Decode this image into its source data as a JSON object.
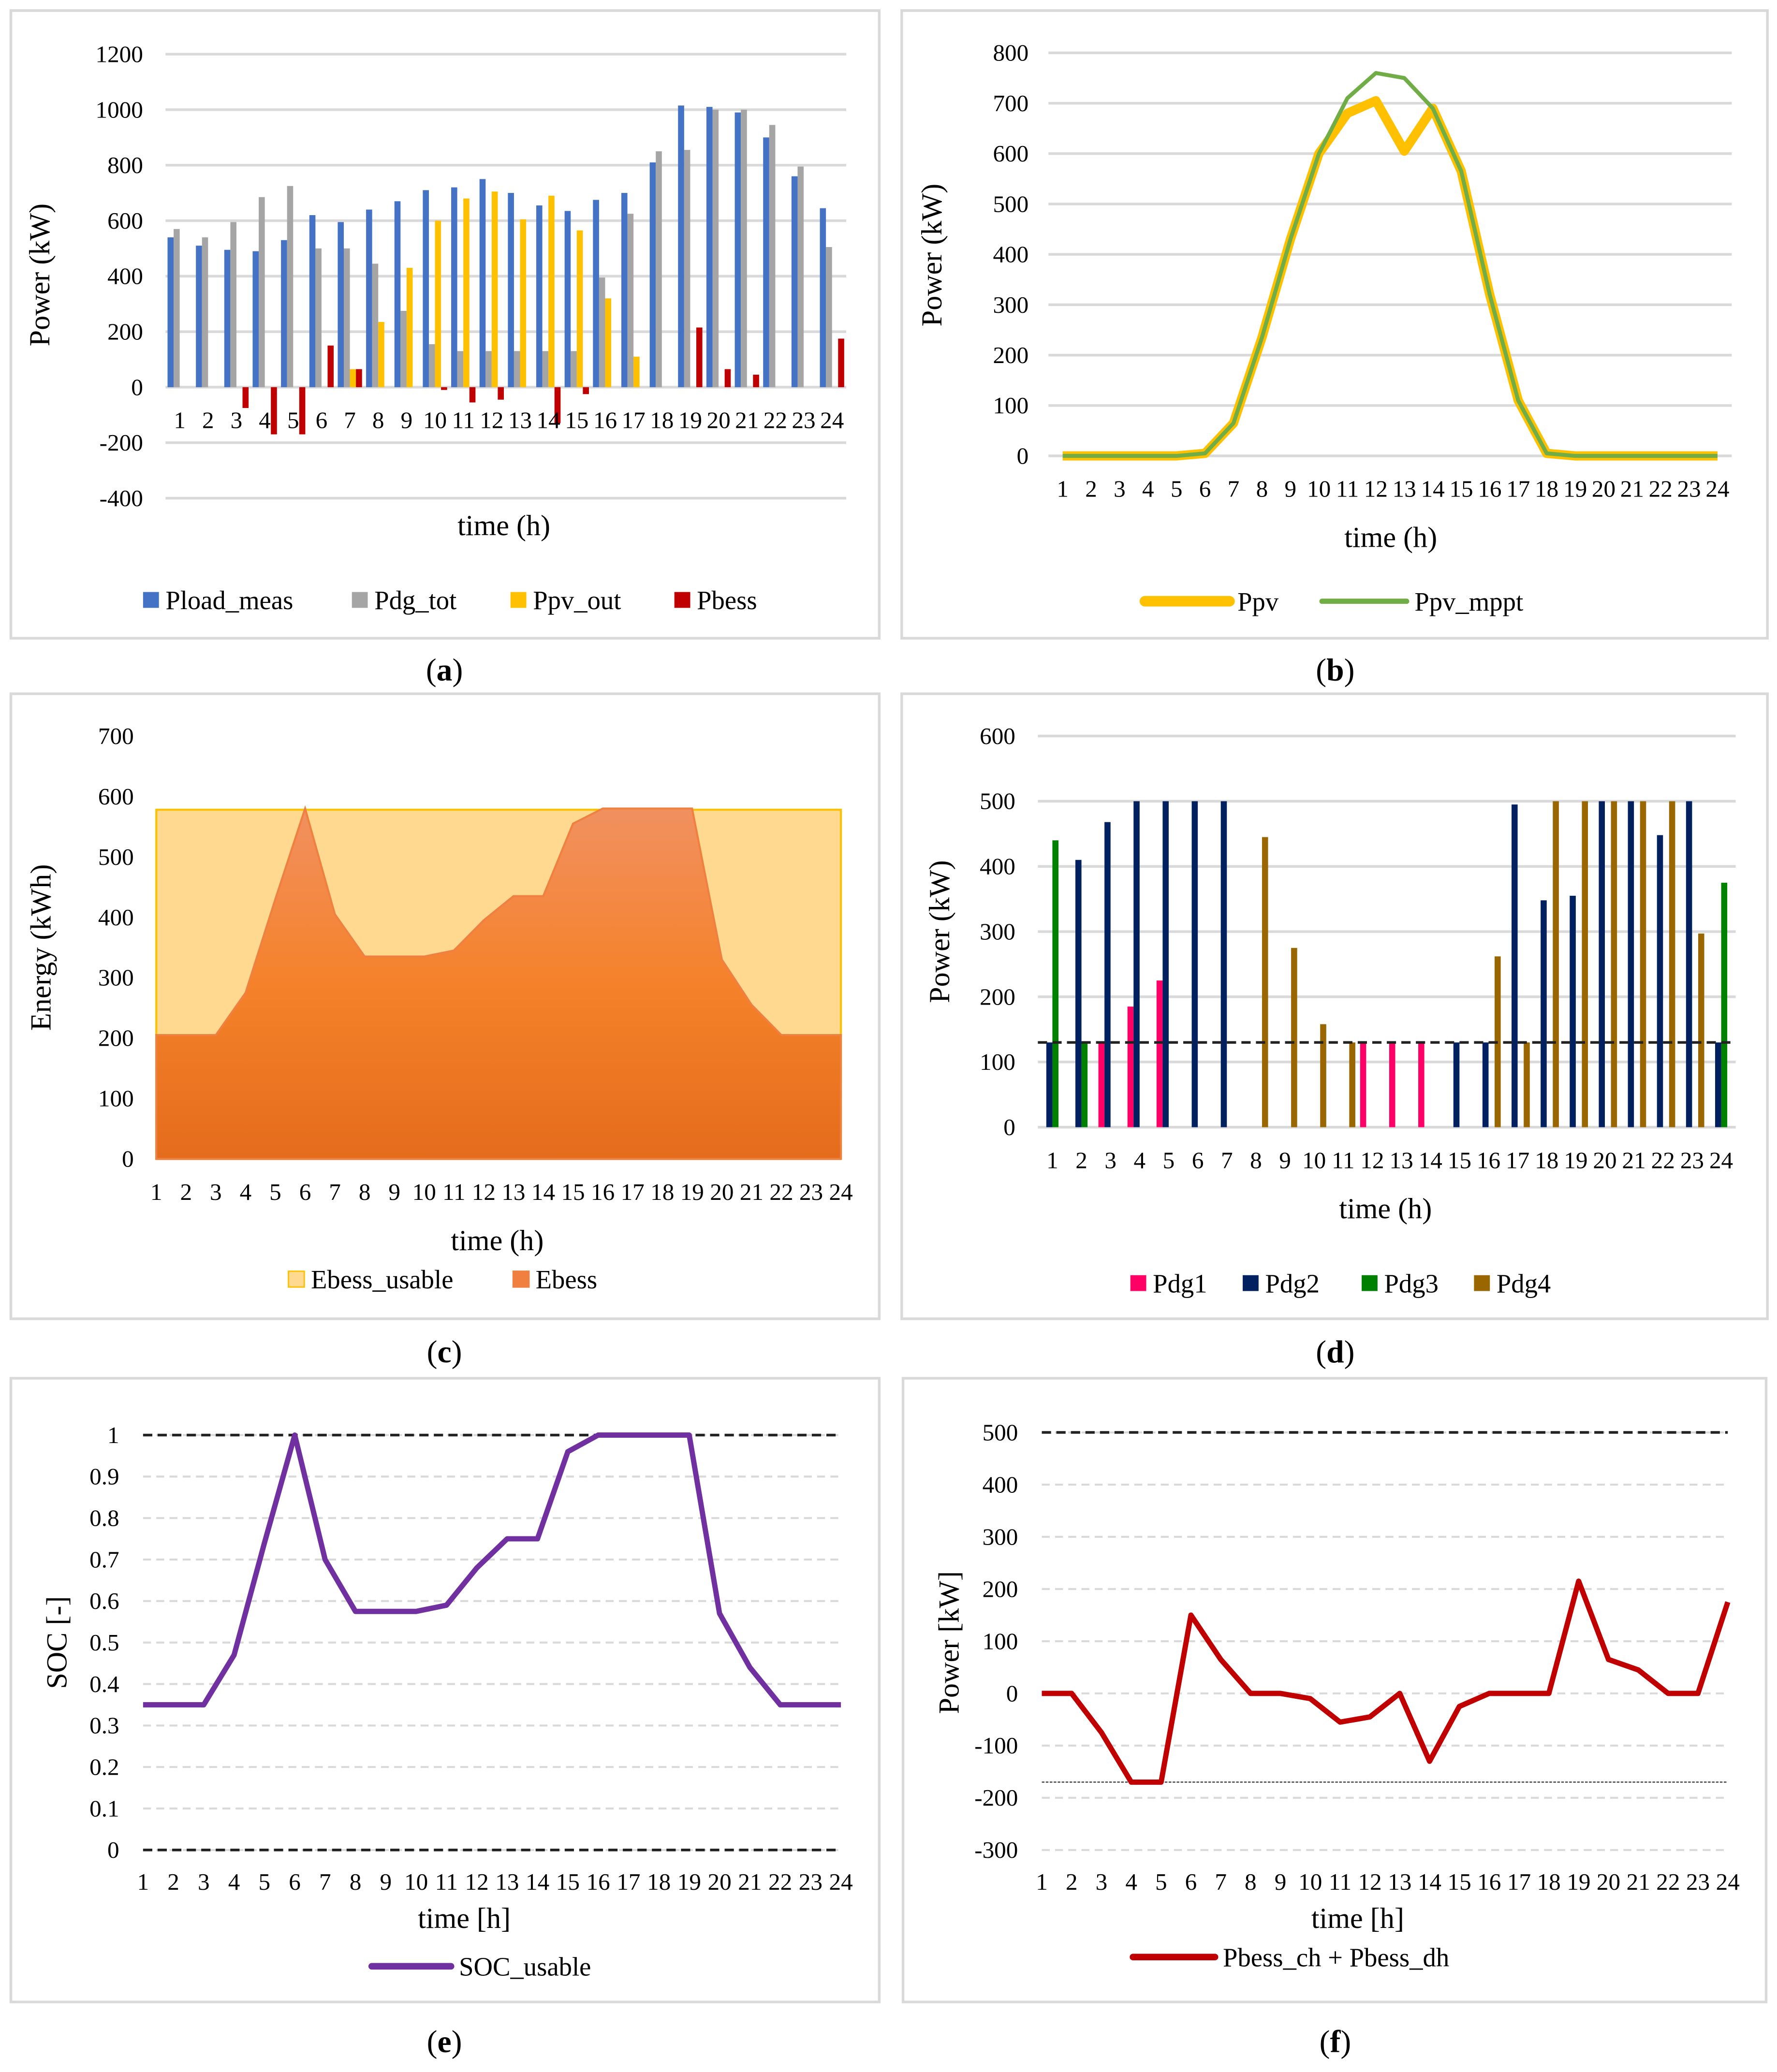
{
  "captions": [
    "a",
    "b",
    "c",
    "d",
    "e",
    "f"
  ],
  "chart_data": [
    {
      "panel": "a",
      "type": "bar",
      "xlabel": "time (h)",
      "ylabel": "Power (kW)",
      "ylim": [
        -400,
        1200
      ],
      "yticks": [
        -400,
        -200,
        0,
        200,
        400,
        600,
        800,
        1000,
        1200
      ],
      "grid": true,
      "legend_position": "bottom",
      "categories": [
        "1",
        "2",
        "3",
        "4",
        "5",
        "6",
        "7",
        "8",
        "9",
        "10",
        "11",
        "12",
        "13",
        "14",
        "15",
        "16",
        "17",
        "18",
        "19",
        "20",
        "21",
        "22",
        "23",
        "24"
      ],
      "series": [
        {
          "name": "Pload_meas",
          "color": "#4472c4",
          "values": [
            540,
            510,
            495,
            490,
            530,
            620,
            595,
            640,
            670,
            710,
            720,
            750,
            700,
            655,
            635,
            675,
            700,
            810,
            1015,
            1010,
            990,
            900,
            760,
            645
          ]
        },
        {
          "name": "Pdg_tot",
          "color": "#a5a5a5",
          "values": [
            570,
            540,
            595,
            685,
            725,
            500,
            500,
            445,
            275,
            155,
            130,
            130,
            130,
            130,
            130,
            395,
            625,
            850,
            855,
            1000,
            1000,
            945,
            795,
            505
          ]
        },
        {
          "name": "Ppv_out",
          "color": "#ffc000",
          "values": [
            0,
            0,
            0,
            0,
            0,
            0,
            65,
            235,
            430,
            600,
            680,
            705,
            605,
            690,
            565,
            320,
            110,
            0,
            0,
            0,
            0,
            0,
            0,
            0
          ]
        },
        {
          "name": "Pbess",
          "color": "#c00000",
          "values": [
            0,
            0,
            -75,
            -170,
            -170,
            150,
            65,
            0,
            0,
            -10,
            -55,
            -45,
            0,
            -130,
            -25,
            0,
            0,
            0,
            215,
            65,
            45,
            0,
            0,
            175
          ]
        }
      ]
    },
    {
      "panel": "b",
      "type": "line",
      "xlabel": "time (h)",
      "ylabel": "Power (kW)",
      "ylim": [
        0,
        800
      ],
      "yticks": [
        0,
        100,
        200,
        300,
        400,
        500,
        600,
        700,
        800
      ],
      "grid": true,
      "legend_position": "bottom",
      "categories": [
        "1",
        "2",
        "3",
        "4",
        "5",
        "6",
        "7",
        "8",
        "9",
        "10",
        "11",
        "12",
        "13",
        "14",
        "15",
        "16",
        "17",
        "18",
        "19",
        "20",
        "21",
        "22",
        "23",
        "24"
      ],
      "series": [
        {
          "name": "Ppv",
          "color": "#ffc000",
          "values": [
            0,
            0,
            0,
            0,
            0,
            5,
            65,
            235,
            430,
            600,
            680,
            705,
            605,
            690,
            565,
            320,
            110,
            5,
            0,
            0,
            0,
            0,
            0,
            0
          ]
        },
        {
          "name": "Ppv_mppt",
          "color": "#70ad47",
          "values": [
            0,
            0,
            0,
            0,
            0,
            5,
            65,
            235,
            430,
            600,
            710,
            760,
            750,
            690,
            565,
            320,
            110,
            5,
            0,
            0,
            0,
            0,
            0,
            0
          ]
        }
      ]
    },
    {
      "panel": "c",
      "type": "area",
      "xlabel": "time (h)",
      "ylabel": "Energy (kWh)",
      "ylim": [
        0,
        700
      ],
      "yticks": [
        0,
        100,
        200,
        300,
        400,
        500,
        600,
        700
      ],
      "grid": false,
      "legend_position": "bottom",
      "categories": [
        "1",
        "2",
        "3",
        "4",
        "5",
        "6",
        "7",
        "8",
        "9",
        "10",
        "11",
        "12",
        "13",
        "14",
        "15",
        "16",
        "17",
        "18",
        "19",
        "20",
        "21",
        "22",
        "23",
        "24"
      ],
      "series": [
        {
          "name": "Ebess_usable",
          "color": "#ffd98f",
          "values": [
            578,
            578,
            578,
            578,
            578,
            578,
            578,
            578,
            578,
            578,
            578,
            578,
            578,
            578,
            578,
            578,
            578,
            578,
            578,
            578,
            578,
            578,
            578,
            578
          ]
        },
        {
          "name": "Ebess",
          "color": "#ed7d31",
          "values": [
            205,
            205,
            205,
            275,
            430,
            580,
            405,
            335,
            335,
            335,
            345,
            395,
            435,
            435,
            555,
            580,
            580,
            580,
            580,
            330,
            255,
            205,
            205,
            205
          ]
        }
      ]
    },
    {
      "panel": "d",
      "type": "bar",
      "xlabel": "time (h)",
      "ylabel": "Power (kW)",
      "ylim": [
        0,
        600
      ],
      "yticks": [
        0,
        100,
        200,
        300,
        400,
        500,
        600
      ],
      "grid": true,
      "legend_position": "bottom",
      "reference_lines": [
        {
          "value": 130,
          "style": "dashed"
        }
      ],
      "categories": [
        "1",
        "2",
        "3",
        "4",
        "5",
        "6",
        "7",
        "8",
        "9",
        "10",
        "11",
        "12",
        "13",
        "14",
        "15",
        "16",
        "17",
        "18",
        "19",
        "20",
        "21",
        "22",
        "23",
        "24"
      ],
      "series": [
        {
          "name": "Pdg1",
          "color": "#ff0066",
          "values": [
            0,
            0,
            130,
            185,
            225,
            0,
            0,
            0,
            0,
            0,
            0,
            130,
            130,
            130,
            0,
            0,
            0,
            0,
            0,
            0,
            0,
            0,
            0,
            0
          ]
        },
        {
          "name": "Pdg2",
          "color": "#002060",
          "values": [
            130,
            410,
            468,
            500,
            500,
            500,
            500,
            0,
            0,
            0,
            0,
            0,
            0,
            0,
            130,
            130,
            495,
            348,
            355,
            500,
            500,
            448,
            500,
            130
          ]
        },
        {
          "name": "Pdg3",
          "color": "#008000",
          "values": [
            440,
            130,
            0,
            0,
            0,
            0,
            0,
            0,
            0,
            0,
            0,
            0,
            0,
            0,
            0,
            0,
            0,
            0,
            0,
            0,
            0,
            0,
            0,
            375
          ]
        },
        {
          "name": "Pdg4",
          "color": "#996600",
          "values": [
            0,
            0,
            0,
            0,
            0,
            0,
            0,
            445,
            275,
            158,
            130,
            0,
            0,
            0,
            0,
            262,
            130,
            500,
            500,
            500,
            500,
            500,
            297,
            0
          ]
        }
      ]
    },
    {
      "panel": "e",
      "type": "line",
      "xlabel": "time [h]",
      "ylabel": "SOC [-]",
      "ylim": [
        0,
        1
      ],
      "yticks": [
        0,
        0.1,
        0.2,
        0.3,
        0.4,
        0.5,
        0.6,
        0.7,
        0.8,
        0.9,
        1
      ],
      "grid": true,
      "legend_position": "bottom",
      "reference_lines": [
        {
          "value": 1,
          "style": "dashed"
        },
        {
          "value": 0,
          "style": "dashed"
        }
      ],
      "categories": [
        "1",
        "2",
        "3",
        "4",
        "5",
        "6",
        "7",
        "8",
        "9",
        "10",
        "11",
        "12",
        "13",
        "14",
        "15",
        "16",
        "17",
        "18",
        "19",
        "20",
        "21",
        "22",
        "23",
        "24"
      ],
      "series": [
        {
          "name": "SOC_usable",
          "color": "#7030a0",
          "values": [
            0.35,
            0.35,
            0.35,
            0.47,
            0.74,
            1.0,
            0.7,
            0.575,
            0.575,
            0.575,
            0.59,
            0.68,
            0.75,
            0.75,
            0.96,
            1,
            1,
            1,
            1,
            0.57,
            0.44,
            0.35,
            0.35,
            0.35
          ]
        }
      ]
    },
    {
      "panel": "f",
      "type": "line",
      "xlabel": "time [h]",
      "ylabel": "Power [kW]",
      "ylim": [
        -300,
        500
      ],
      "yticks": [
        -300,
        -200,
        -100,
        0,
        100,
        200,
        300,
        400,
        500
      ],
      "grid": true,
      "legend_position": "bottom",
      "reference_lines": [
        {
          "value": 500,
          "style": "dashed"
        },
        {
          "value": -170,
          "style": "dotted"
        }
      ],
      "categories": [
        "1",
        "2",
        "3",
        "4",
        "5",
        "6",
        "7",
        "8",
        "9",
        "10",
        "11",
        "12",
        "13",
        "14",
        "15",
        "16",
        "17",
        "18",
        "19",
        "20",
        "21",
        "22",
        "23",
        "24"
      ],
      "series": [
        {
          "name": "Pbess_ch + Pbess_dh",
          "color": "#c00000",
          "values": [
            0,
            0,
            -75,
            -170,
            -170,
            150,
            65,
            0,
            0,
            -10,
            -55,
            -45,
            0,
            -130,
            -25,
            0,
            0,
            0,
            215,
            65,
            45,
            0,
            0,
            175
          ]
        }
      ]
    }
  ]
}
